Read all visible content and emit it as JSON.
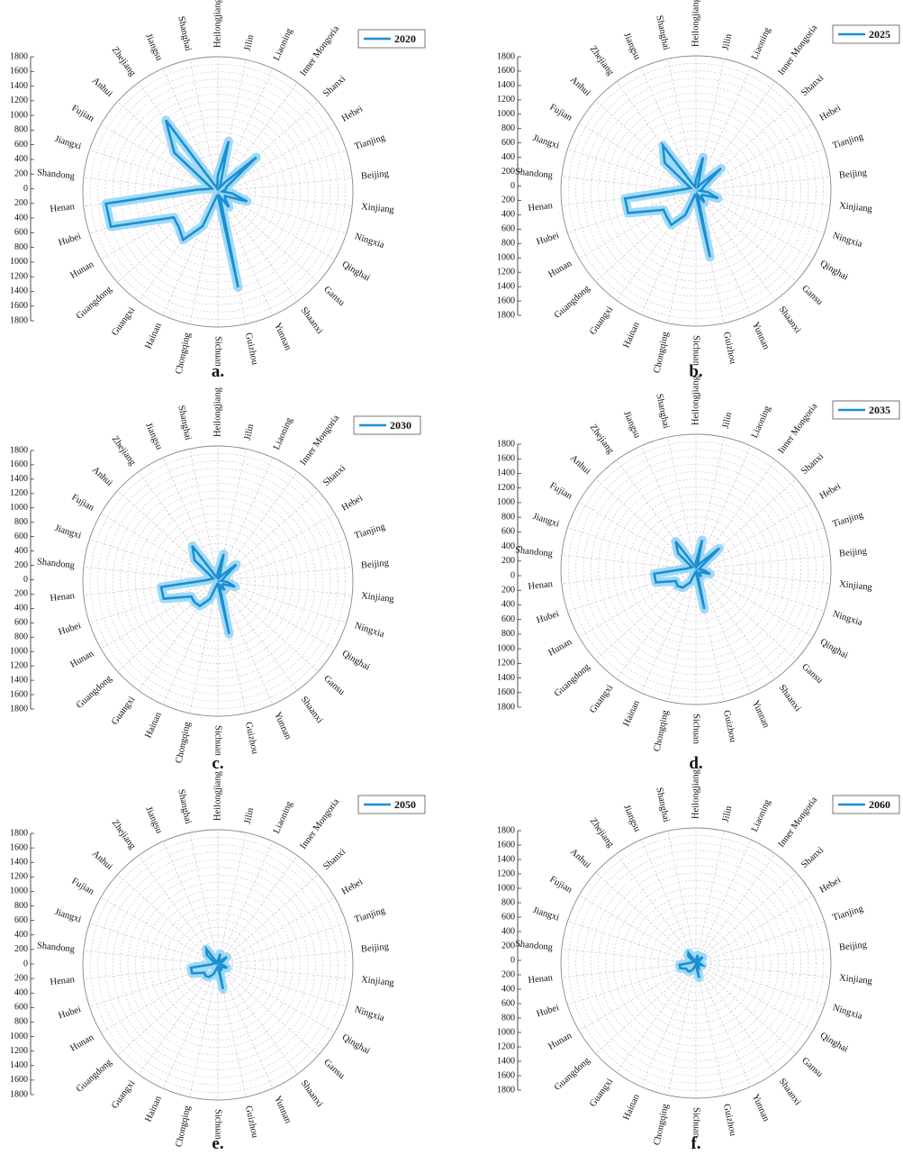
{
  "colors": {
    "series_line": "#1a8fd1",
    "series_band": "#8fd3f4",
    "grid": "#c4c4c4",
    "axis": "#222222",
    "text": "#111111"
  },
  "chart_data": [
    {
      "type": "radar",
      "panel_label": "a.",
      "legend": "2020",
      "categories": [
        "Heilongjiang",
        "Jilin",
        "Liaoning",
        "Inner Mongoria",
        "Shanxi",
        "Hebei",
        "Tianjing",
        "Beijing",
        "Xinjiang",
        "Ningxia",
        "Qinghai",
        "Gansu",
        "Shaanxi",
        "Yunnan",
        "Guizhou",
        "Sichuan",
        "Chongqing",
        "Hainan",
        "Guangxi",
        "Guangdong",
        "Hunan",
        "Hubei",
        "Henan",
        "Shandong",
        "Jiangxi",
        "Fujian",
        "Anhui",
        "Zhejiang",
        "Jiangsu",
        "Shanghai"
      ],
      "y_ticks": [
        1800,
        1600,
        1400,
        1200,
        1000,
        800,
        600,
        400,
        200,
        0,
        200,
        400,
        600,
        800,
        1000,
        1200,
        1400,
        1600,
        1800
      ],
      "rlim": [
        0,
        1800
      ],
      "series": [
        {
          "values": [
            220,
            690,
            60,
            150,
            690,
            130,
            110,
            60,
            190,
            410,
            110,
            130,
            250,
            70,
            1300,
            50,
            50,
            500,
            790,
            700,
            680,
            1500,
            1500,
            280,
            130,
            90,
            780,
            1180,
            90,
            50
          ]
        }
      ]
    },
    {
      "type": "radar",
      "panel_label": "b.",
      "legend": "2025",
      "categories": [
        "Heilongjiang",
        "Jilin",
        "Liaoning",
        "Inner Mongoria",
        "Shanxi",
        "Hebei",
        "Tianjing",
        "Beijing",
        "Xinjiang",
        "Ningxia",
        "Qinghai",
        "Gansu",
        "Shaanxi",
        "Yunnan",
        "Guizhou",
        "Sichuan",
        "Chongqing",
        "Hainan",
        "Guangxi",
        "Guangdong",
        "Hunan",
        "Hubei",
        "Henan",
        "Shandong",
        "Jiangxi",
        "Fujian",
        "Anhui",
        "Zhejiang",
        "Jiangsu",
        "Shanghai"
      ],
      "y_ticks": [
        1800,
        1600,
        1400,
        1200,
        1000,
        800,
        600,
        400,
        200,
        0,
        200,
        400,
        600,
        800,
        1000,
        1200,
        1400,
        1600,
        1800
      ],
      "rlim": [
        0,
        1800
      ],
      "series": [
        {
          "values": [
            150,
            460,
            60,
            120,
            450,
            120,
            90,
            50,
            160,
            310,
            100,
            100,
            190,
            60,
            900,
            50,
            50,
            350,
            560,
            520,
            500,
            950,
            950,
            180,
            110,
            80,
            560,
            750,
            90,
            60
          ]
        }
      ]
    },
    {
      "type": "radar",
      "panel_label": "c.",
      "legend": "2030",
      "categories": [
        "Heilongjiang",
        "Jilin",
        "Liaoning",
        "Inner Mongoria",
        "Shanxi",
        "Hebei",
        "Tianjing",
        "Beijing",
        "Xinjiang",
        "Ningxia",
        "Qinghai",
        "Gansu",
        "Shaanxi",
        "Yunnan",
        "Guizhou",
        "Sichuan",
        "Chongqing",
        "Hainan",
        "Guangxi",
        "Guangdong",
        "Hunan",
        "Hubei",
        "Henan",
        "Shandong",
        "Jiangxi",
        "Fujian",
        "Anhui",
        "Zhejiang",
        "Jiangsu",
        "Shanghai"
      ],
      "y_ticks": [
        1800,
        1600,
        1400,
        1200,
        1000,
        800,
        600,
        400,
        200,
        0,
        200,
        400,
        600,
        800,
        1000,
        1200,
        1400,
        1600,
        1800
      ],
      "rlim": [
        0,
        1800
      ],
      "series": [
        {
          "values": [
            120,
            370,
            50,
            100,
            330,
            100,
            70,
            40,
            130,
            240,
            80,
            80,
            150,
            50,
            720,
            40,
            40,
            260,
            410,
            420,
            410,
            760,
            760,
            140,
            90,
            70,
            420,
            580,
            70,
            50
          ]
        }
      ]
    },
    {
      "type": "radar",
      "panel_label": "d.",
      "legend": "2035",
      "categories": [
        "Heilongjiang",
        "Jilin",
        "Liaoning",
        "Inner Mongoria",
        "Shanxi",
        "Hebei",
        "Tianjing",
        "Beijing",
        "Xinjiang",
        "Ningxia",
        "Qinghai",
        "Gansu",
        "Shaanxi",
        "Yunnan",
        "Guizhou",
        "Sichuan",
        "Chongqing",
        "Hainan",
        "Guangxi",
        "Guangdong",
        "Hunan",
        "Hubei",
        "Henan",
        "Shandong",
        "Jiangxi",
        "Fujian",
        "Anhui",
        "Zhejiang",
        "Jiangsu",
        "Shanghai"
      ],
      "y_ticks": [
        1800,
        1600,
        1400,
        1200,
        1000,
        800,
        600,
        400,
        200,
        0,
        200,
        400,
        600,
        800,
        1000,
        1200,
        1400,
        1600,
        1800
      ],
      "rlim": [
        0,
        1800
      ],
      "series": [
        {
          "values": [
            100,
            400,
            50,
            110,
            420,
            90,
            60,
            40,
            110,
            200,
            70,
            70,
            120,
            40,
            540,
            40,
            40,
            190,
            300,
            330,
            310,
            560,
            560,
            120,
            80,
            60,
            320,
            460,
            60,
            40
          ]
        }
      ]
    },
    {
      "type": "radar",
      "panel_label": "e.",
      "legend": "2050",
      "categories": [
        "Heilongjiang",
        "Jilin",
        "Liaoning",
        "Inner Mongoria",
        "Shanxi",
        "Hebei",
        "Tianjing",
        "Beijing",
        "Xinjiang",
        "Ningxia",
        "Qinghai",
        "Gansu",
        "Shaanxi",
        "Yunnan",
        "Guizhou",
        "Sichuan",
        "Chongqing",
        "Hainan",
        "Guangxi",
        "Guangdong",
        "Hunan",
        "Hubei",
        "Henan",
        "Shandong",
        "Jiangxi",
        "Fujian",
        "Anhui",
        "Zhejiang",
        "Jiangsu",
        "Shanghai"
      ],
      "y_ticks": [
        1800,
        1600,
        1400,
        1200,
        1000,
        800,
        600,
        400,
        200,
        0,
        200,
        400,
        600,
        800,
        1000,
        1200,
        1400,
        1600,
        1800
      ],
      "rlim": [
        0,
        1800
      ],
      "series": [
        {
          "values": [
            60,
            150,
            40,
            70,
            160,
            60,
            40,
            30,
            80,
            130,
            50,
            50,
            90,
            30,
            330,
            30,
            30,
            130,
            200,
            220,
            210,
            360,
            360,
            80,
            60,
            40,
            200,
            260,
            40,
            30
          ]
        }
      ]
    },
    {
      "type": "radar",
      "panel_label": "f.",
      "legend": "2060",
      "categories": [
        "Heilongjiang",
        "Jilin",
        "Liaoning",
        "Inner Mongoria",
        "Shanxi",
        "Hebei",
        "Tianjing",
        "Beijing",
        "Xinjiang",
        "Ningxia",
        "Qinghai",
        "Gansu",
        "Shaanxi",
        "Yunnan",
        "Guizhou",
        "Sichuan",
        "Chongqing",
        "Hainan",
        "Guangxi",
        "Guangdong",
        "Hunan",
        "Hubei",
        "Henan",
        "Shandong",
        "Jiangxi",
        "Fujian",
        "Anhui",
        "Zhejiang",
        "Jiangsu",
        "Shanghai"
      ],
      "y_ticks": [
        1800,
        1600,
        1400,
        1200,
        1000,
        800,
        600,
        400,
        200,
        0,
        200,
        400,
        600,
        800,
        1000,
        1200,
        1400,
        1600,
        1800
      ],
      "rlim": [
        0,
        1800
      ],
      "series": [
        {
          "values": [
            50,
            110,
            30,
            60,
            120,
            50,
            30,
            20,
            60,
            90,
            40,
            40,
            60,
            25,
            200,
            25,
            25,
            90,
            140,
            150,
            150,
            220,
            220,
            60,
            40,
            30,
            140,
            170,
            30,
            25
          ]
        }
      ]
    }
  ]
}
